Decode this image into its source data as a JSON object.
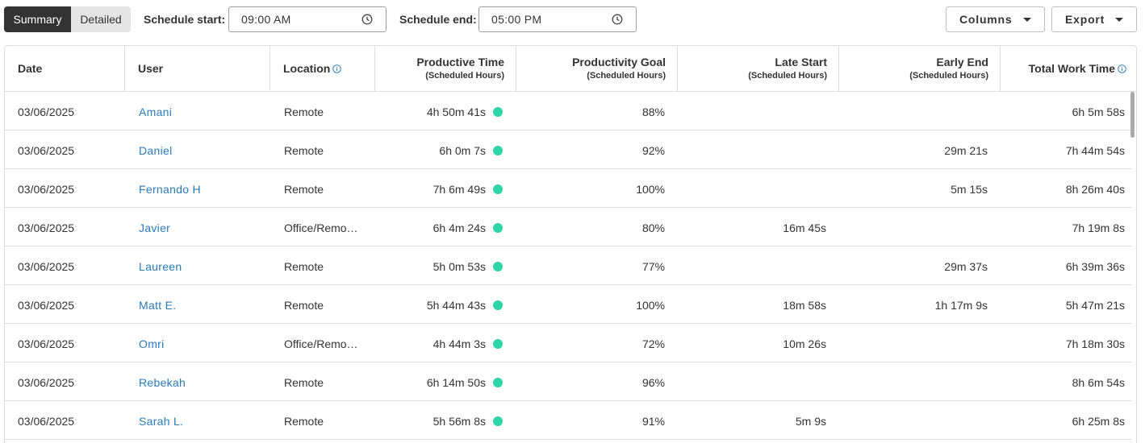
{
  "toolbar": {
    "view_toggle": {
      "summary": "Summary",
      "detailed": "Detailed",
      "selected": "Summary"
    },
    "schedule_start": {
      "label": "Schedule start:",
      "value": "09:00 AM"
    },
    "schedule_end": {
      "label": "Schedule end:",
      "value": "05:00 PM"
    },
    "columns_label": "Columns",
    "export_label": "Export"
  },
  "table": {
    "headers": {
      "date": "Date",
      "user": "User",
      "location": "Location",
      "productive_time": "Productive Time",
      "productive_time_sub": "(Scheduled Hours)",
      "productivity_goal": "Productivity Goal",
      "productivity_goal_sub": "(Scheduled Hours)",
      "late_start": "Late Start",
      "late_start_sub": "(Scheduled Hours)",
      "early_end": "Early End",
      "early_end_sub": "(Scheduled Hours)",
      "total_work_time": "Total Work Time"
    },
    "rows": [
      {
        "date": "03/06/2025",
        "user": "Amani",
        "location": "Remote",
        "productive_time": "4h 50m 41s",
        "productivity_goal": "88%",
        "late_start": "",
        "early_end": "",
        "total_work_time": "6h 5m 58s"
      },
      {
        "date": "03/06/2025",
        "user": "Daniel",
        "location": "Remote",
        "productive_time": "6h 0m 7s",
        "productivity_goal": "92%",
        "late_start": "",
        "early_end": "29m 21s",
        "total_work_time": "7h 44m 54s"
      },
      {
        "date": "03/06/2025",
        "user": "Fernando H",
        "location": "Remote",
        "productive_time": "7h 6m 49s",
        "productivity_goal": "100%",
        "late_start": "",
        "early_end": "5m 15s",
        "total_work_time": "8h 26m 40s"
      },
      {
        "date": "03/06/2025",
        "user": "Javier",
        "location": "Office/Remo…",
        "productive_time": "6h 4m 24s",
        "productivity_goal": "80%",
        "late_start": "16m 45s",
        "early_end": "",
        "total_work_time": "7h 19m 8s"
      },
      {
        "date": "03/06/2025",
        "user": "Laureen",
        "location": "Remote",
        "productive_time": "5h 0m 53s",
        "productivity_goal": "77%",
        "late_start": "",
        "early_end": "29m 37s",
        "total_work_time": "6h 39m 36s"
      },
      {
        "date": "03/06/2025",
        "user": "Matt E.",
        "location": "Remote",
        "productive_time": "5h 44m 43s",
        "productivity_goal": "100%",
        "late_start": "18m 58s",
        "early_end": "1h 17m 9s",
        "total_work_time": "5h 47m 21s"
      },
      {
        "date": "03/06/2025",
        "user": "Omri",
        "location": "Office/Remo…",
        "productive_time": "4h 44m 3s",
        "productivity_goal": "72%",
        "late_start": "10m 26s",
        "early_end": "",
        "total_work_time": "7h 18m 30s"
      },
      {
        "date": "03/06/2025",
        "user": "Rebekah",
        "location": "Remote",
        "productive_time": "6h 14m 50s",
        "productivity_goal": "96%",
        "late_start": "",
        "early_end": "",
        "total_work_time": "8h 6m 54s"
      },
      {
        "date": "03/06/2025",
        "user": "Sarah L.",
        "location": "Remote",
        "productive_time": "5h 56m 8s",
        "productivity_goal": "91%",
        "late_start": "5m 9s",
        "early_end": "",
        "total_work_time": "6h 25m 8s"
      }
    ]
  },
  "colors": {
    "link": "#2b7bb9",
    "status_dot": "#2dd4a7",
    "toggle_active_bg": "#333333",
    "toggle_inactive_bg": "#e4e4e4"
  }
}
